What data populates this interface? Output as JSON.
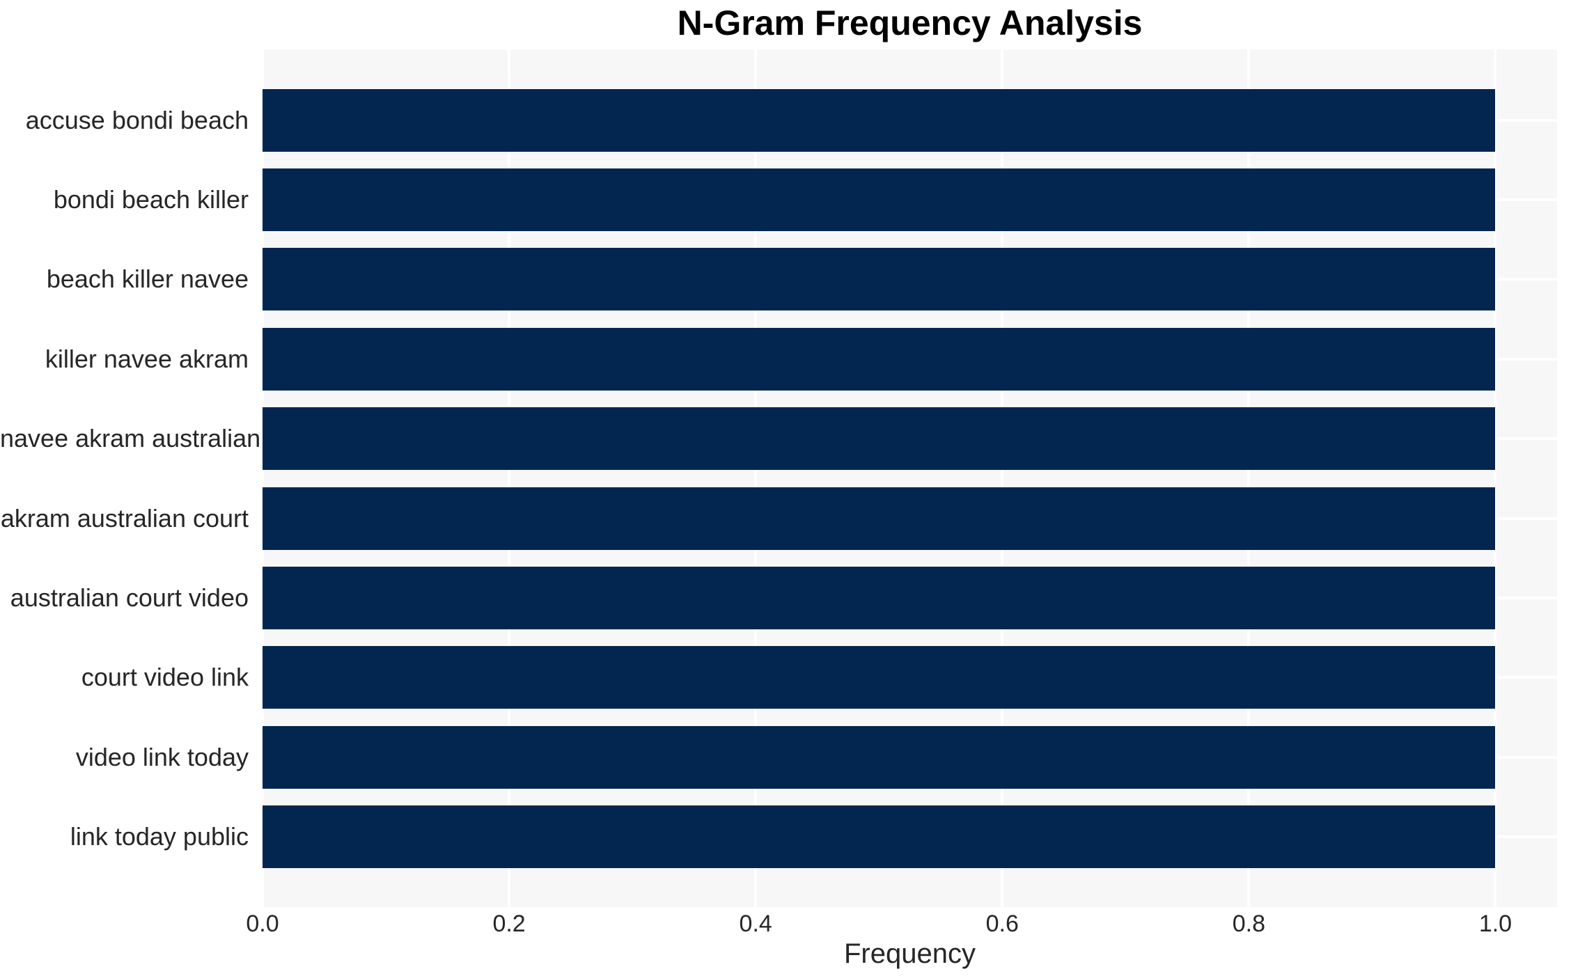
{
  "chart_data": {
    "type": "bar",
    "orientation": "horizontal",
    "title": "N-Gram Frequency Analysis",
    "xlabel": "Frequency",
    "ylabel": "",
    "categories": [
      "accuse bondi beach",
      "bondi beach killer",
      "beach killer navee",
      "killer navee akram",
      "navee akram australian",
      "akram australian court",
      "australian court video",
      "court video link",
      "video link today",
      "link today public"
    ],
    "values": [
      1.0,
      1.0,
      1.0,
      1.0,
      1.0,
      1.0,
      1.0,
      1.0,
      1.0,
      1.0
    ],
    "xlim": [
      0.0,
      1.05
    ],
    "xticks": {
      "values": [
        0.0,
        0.2,
        0.4,
        0.6,
        0.8,
        1.0
      ],
      "labels": [
        "0.0",
        "0.2",
        "0.4",
        "0.6",
        "0.8",
        "1.0"
      ]
    },
    "grid": true,
    "legend": false,
    "colors": {
      "bar": "#02264f",
      "plot_background": "#f7f7f7",
      "gridline": "#ffffff",
      "axis_text": "#262626",
      "title_text": "#000000"
    }
  }
}
